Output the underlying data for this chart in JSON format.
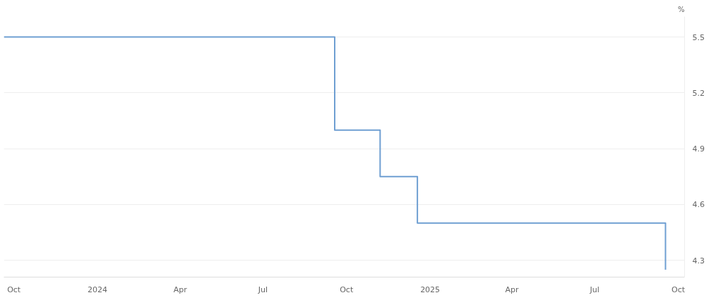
{
  "chart_data": {
    "type": "step",
    "ylabel": "%",
    "x": [
      "2023-09-20",
      "2024-09-18",
      "2024-11-07",
      "2024-12-18",
      "2025-09-17"
    ],
    "series": [
      {
        "color": "#6f9fd2",
        "values": [
          5.5,
          5.0,
          4.75,
          4.5,
          4.25
        ]
      }
    ],
    "xlim": [
      "2023-09-20",
      "2025-10-08"
    ],
    "xticks": [
      {
        "value": "2023-10",
        "label": "Oct"
      },
      {
        "value": "2024-01",
        "label": "2024"
      },
      {
        "value": "2024-04",
        "label": "Apr"
      },
      {
        "value": "2024-07",
        "label": "Jul"
      },
      {
        "value": "2024-10",
        "label": "Oct"
      },
      {
        "value": "2025-01",
        "label": "2025"
      },
      {
        "value": "2025-04",
        "label": "Apr"
      },
      {
        "value": "2025-07",
        "label": "Jul"
      },
      {
        "value": "2025-10",
        "label": "Oct"
      }
    ],
    "ylim": [
      4.21,
      5.61
    ],
    "yticks": [
      4.3,
      4.6,
      4.9,
      5.2,
      5.5
    ],
    "grid": true
  }
}
